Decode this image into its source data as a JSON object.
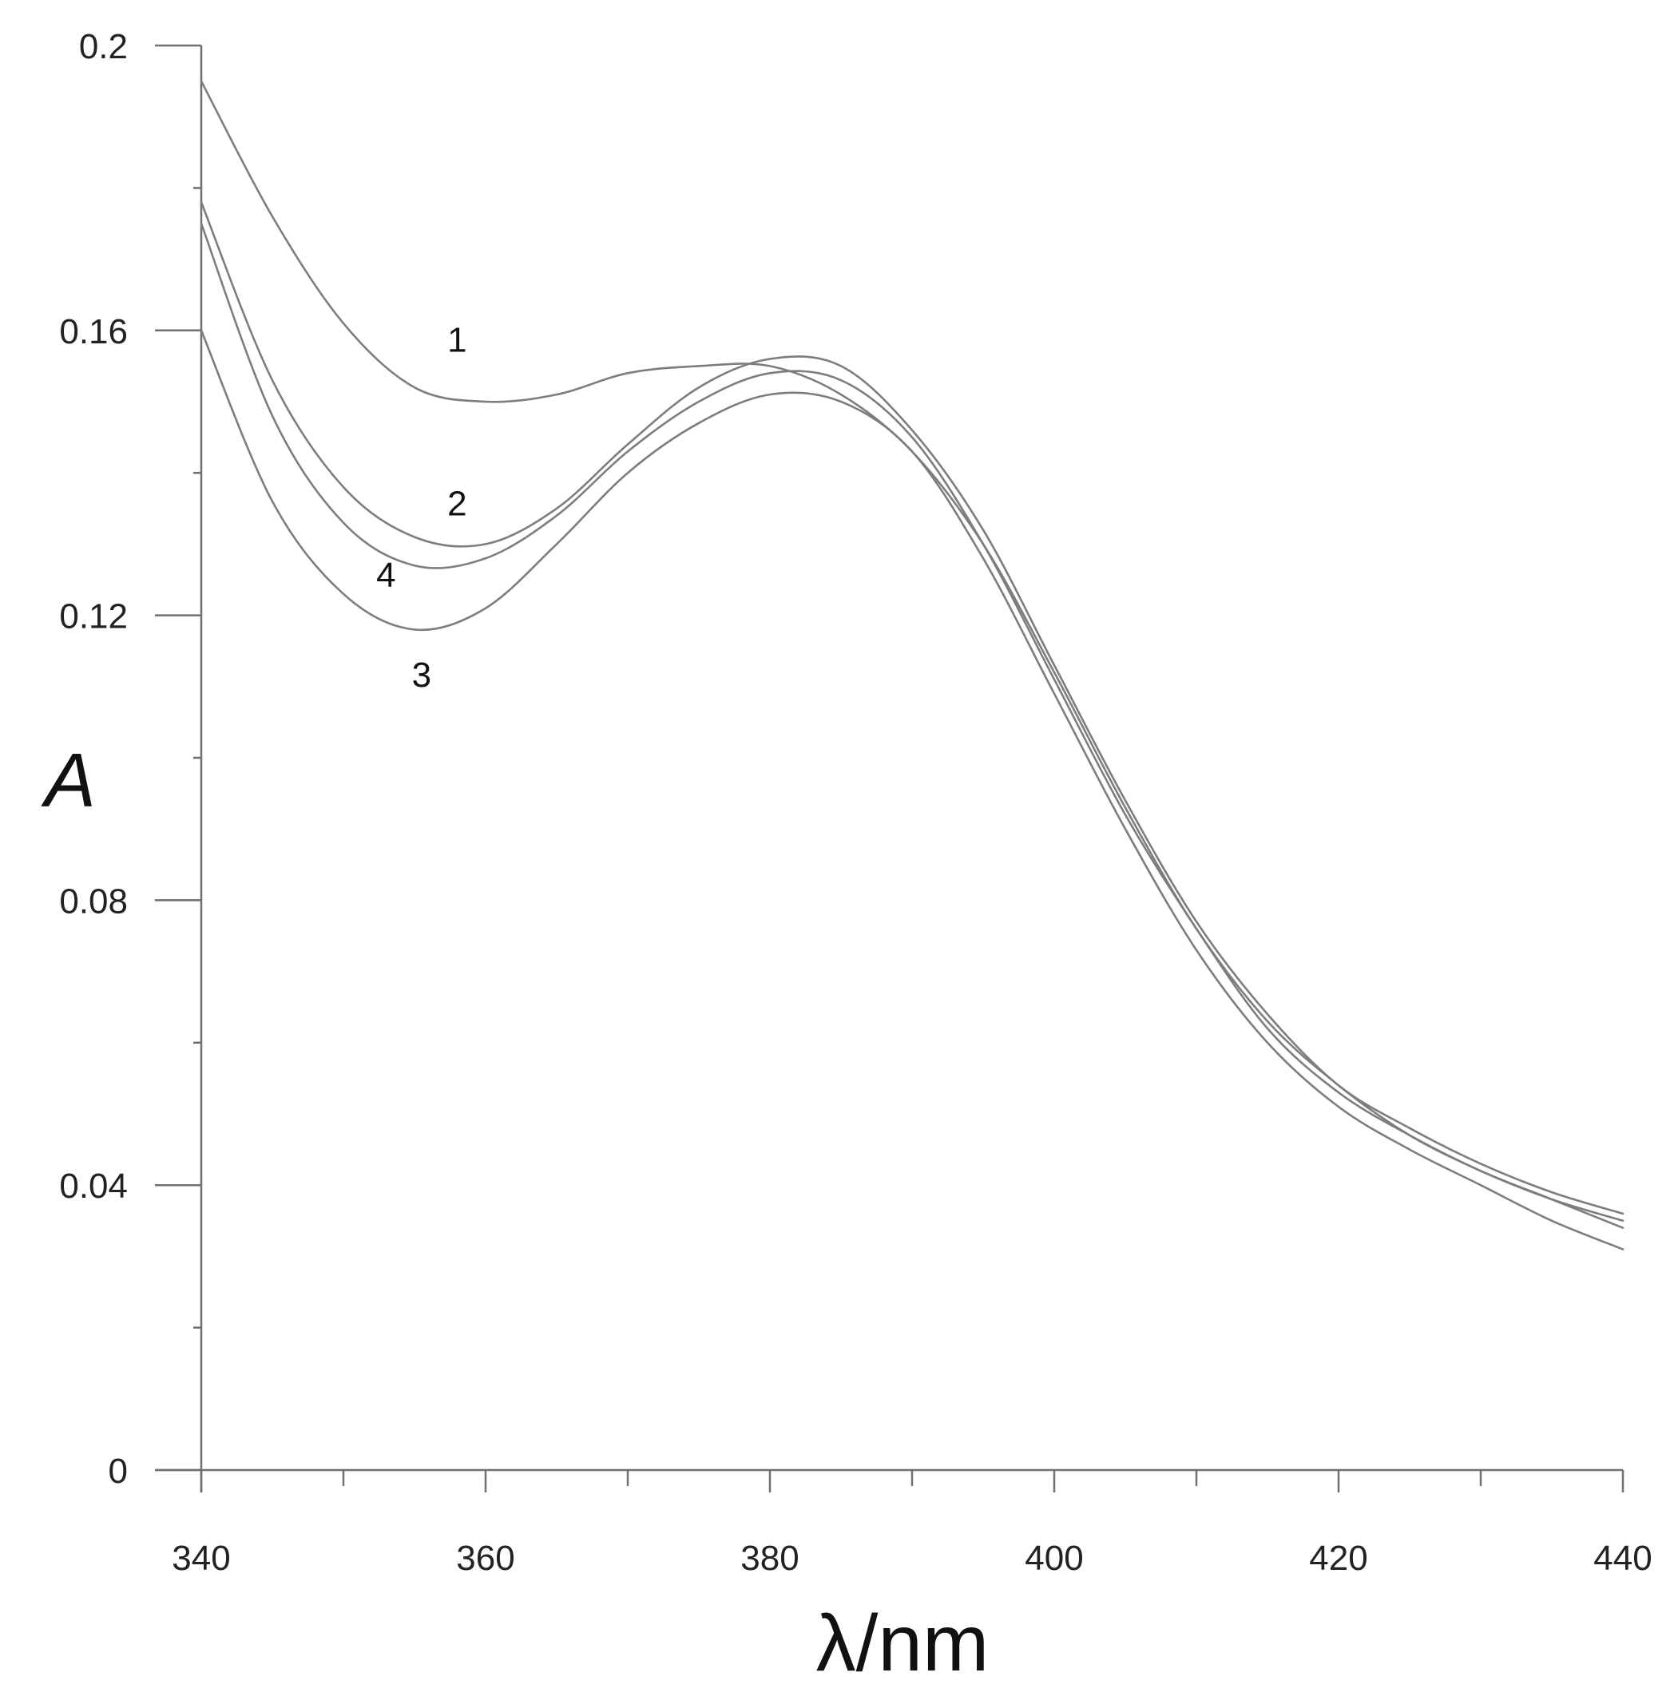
{
  "chart_data": {
    "type": "line",
    "xlabel": "λ/nm",
    "ylabel": "A",
    "xlim": [
      340,
      440
    ],
    "ylim": [
      0,
      0.2
    ],
    "x_ticks": [
      340,
      360,
      380,
      400,
      420,
      440
    ],
    "y_ticks": [
      0,
      0.04,
      0.08,
      0.12,
      0.16,
      0.2
    ],
    "y_tick_labels": [
      "0",
      "0.04",
      "0.08",
      "0.12",
      "0.16",
      "0.2"
    ],
    "grid": false,
    "legend": "none",
    "series": [
      {
        "name": "1",
        "x": [
          340,
          345,
          350,
          355,
          360,
          365,
          370,
          375,
          380,
          385,
          390,
          395,
          400,
          405,
          410,
          415,
          420,
          425,
          430,
          435,
          440
        ],
        "y": [
          0.195,
          0.176,
          0.161,
          0.152,
          0.15,
          0.151,
          0.154,
          0.155,
          0.155,
          0.151,
          0.143,
          0.13,
          0.112,
          0.093,
          0.076,
          0.063,
          0.054,
          0.047,
          0.042,
          0.038,
          0.035
        ]
      },
      {
        "name": "2",
        "x": [
          340,
          345,
          350,
          355,
          360,
          365,
          370,
          375,
          380,
          385,
          390,
          395,
          400,
          405,
          410,
          415,
          420,
          425,
          430,
          435,
          440
        ],
        "y": [
          0.178,
          0.153,
          0.138,
          0.131,
          0.13,
          0.135,
          0.144,
          0.152,
          0.156,
          0.155,
          0.146,
          0.132,
          0.113,
          0.094,
          0.077,
          0.064,
          0.054,
          0.048,
          0.043,
          0.039,
          0.036
        ]
      },
      {
        "name": "3",
        "x": [
          340,
          345,
          350,
          355,
          360,
          365,
          370,
          375,
          380,
          385,
          390,
          395,
          400,
          405,
          410,
          415,
          420,
          425,
          430,
          435,
          440
        ],
        "y": [
          0.16,
          0.136,
          0.123,
          0.118,
          0.121,
          0.13,
          0.14,
          0.147,
          0.151,
          0.15,
          0.143,
          0.128,
          0.109,
          0.09,
          0.073,
          0.06,
          0.051,
          0.045,
          0.04,
          0.035,
          0.031
        ]
      },
      {
        "name": "4",
        "x": [
          340,
          345,
          350,
          355,
          360,
          365,
          370,
          375,
          380,
          385,
          390,
          395,
          400,
          405,
          410,
          415,
          420,
          425,
          430,
          435,
          440
        ],
        "y": [
          0.175,
          0.148,
          0.133,
          0.127,
          0.128,
          0.134,
          0.143,
          0.15,
          0.154,
          0.153,
          0.145,
          0.13,
          0.111,
          0.092,
          0.076,
          0.062,
          0.053,
          0.047,
          0.042,
          0.038,
          0.034
        ]
      }
    ],
    "annotations": [
      {
        "text": "1",
        "x": 358,
        "y": 0.157
      },
      {
        "text": "2",
        "x": 358,
        "y": 0.134
      },
      {
        "text": "4",
        "x": 353,
        "y": 0.124
      },
      {
        "text": "3",
        "x": 355.5,
        "y": 0.11
      }
    ]
  }
}
